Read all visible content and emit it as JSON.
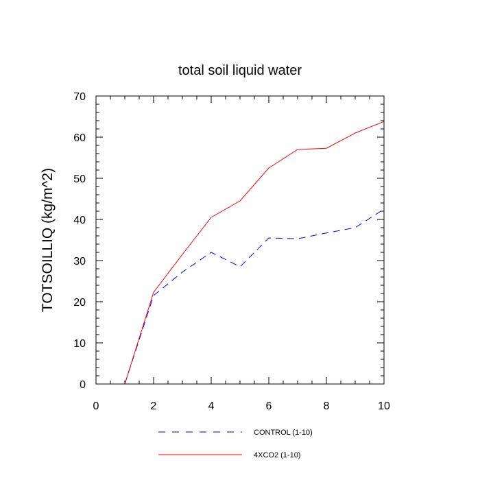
{
  "chart_data": {
    "type": "line",
    "title": "total soil liquid water",
    "xlabel": "",
    "ylabel": "TOTSOILLIQ  (kg/m^2)",
    "xlim": [
      0,
      10
    ],
    "ylim": [
      0,
      70
    ],
    "x_ticks": [
      "0",
      "2",
      "4",
      "6",
      "8",
      "10"
    ],
    "y_ticks": [
      "0",
      "10",
      "20",
      "30",
      "40",
      "50",
      "60",
      "70"
    ],
    "grid": false,
    "legend_position": "bottom",
    "series": [
      {
        "name": "CONTROL (1-10)",
        "style": "dashed",
        "color": "#0000ff",
        "x": [
          1,
          2,
          3,
          4,
          5,
          6,
          7,
          8,
          9,
          10
        ],
        "values": [
          0,
          21.5,
          27.2,
          32.0,
          28.5,
          35.5,
          35.3,
          36.7,
          38.0,
          42.5
        ]
      },
      {
        "name": "4XCO2 (1-10)",
        "style": "solid",
        "color": "#ff0000",
        "x": [
          1,
          2,
          3,
          4,
          5,
          6,
          7,
          8,
          9,
          10
        ],
        "values": [
          0,
          22.3,
          31.5,
          40.5,
          44.5,
          52.5,
          57.0,
          57.3,
          61.0,
          63.8
        ]
      }
    ]
  }
}
